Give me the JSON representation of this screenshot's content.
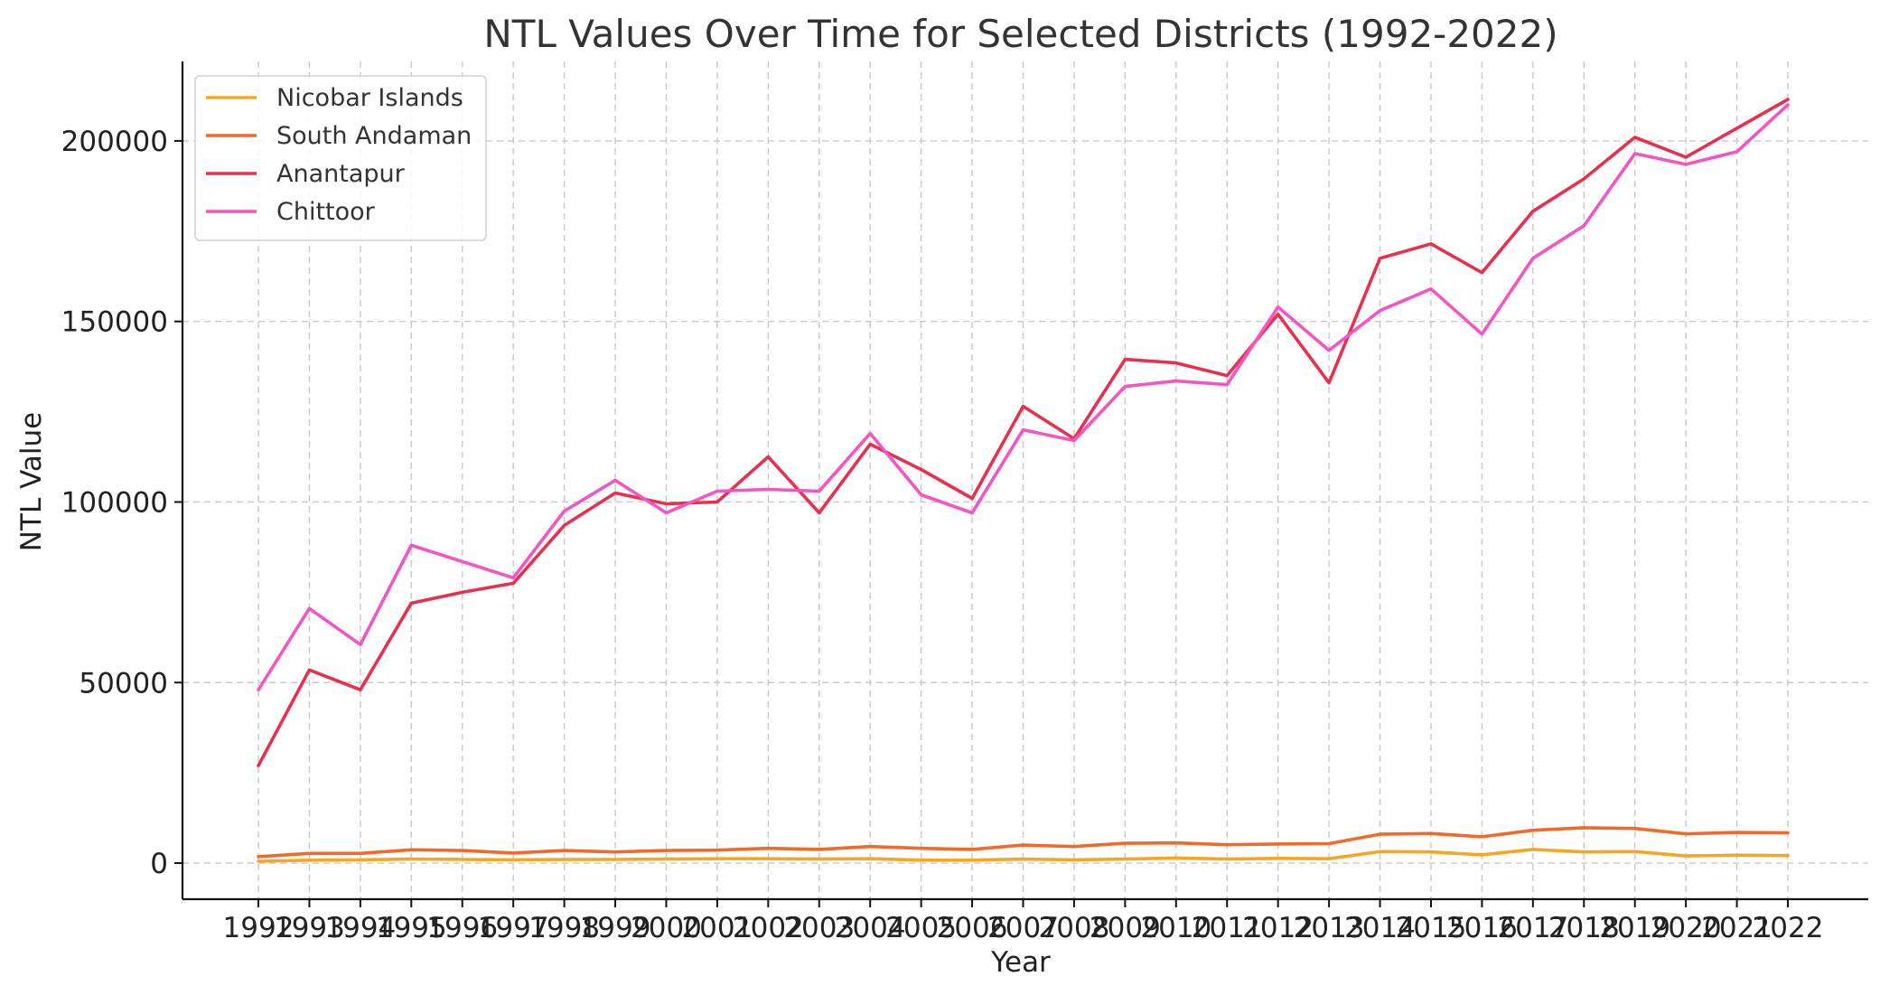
{
  "chart_data": {
    "type": "line",
    "title": "NTL Values Over Time for Selected Districts (1992-2022)",
    "xlabel": "Year",
    "ylabel": "NTL Value",
    "x": [
      "1992",
      "1993",
      "1994",
      "1995",
      "1996",
      "1997",
      "1998",
      "1999",
      "2000",
      "2001",
      "2002",
      "2003",
      "2004",
      "2005",
      "2006",
      "2007",
      "2008",
      "2009",
      "2010",
      "2011",
      "2012",
      "2013",
      "2014",
      "2015",
      "2016",
      "2017",
      "2018",
      "2019",
      "2020",
      "2021",
      "2022"
    ],
    "ylim": [
      -10000,
      222000
    ],
    "yticks": [
      0,
      50000,
      100000,
      150000,
      200000
    ],
    "grid": true,
    "legend_position": "top-left",
    "series": [
      {
        "name": "Nicobar Islands",
        "color": "#f5a623",
        "values": [
          500,
          800,
          900,
          1100,
          1000,
          900,
          1000,
          1000,
          1100,
          1200,
          1200,
          1100,
          1200,
          800,
          800,
          1100,
          900,
          1100,
          1400,
          1100,
          1300,
          1200,
          3200,
          3100,
          2300,
          3800,
          3100,
          3200,
          2000,
          2200,
          2100
        ]
      },
      {
        "name": "South Andaman",
        "color": "#f06a2a",
        "values": [
          1800,
          2700,
          2700,
          3700,
          3500,
          2800,
          3500,
          3100,
          3500,
          3600,
          4100,
          3800,
          4600,
          4100,
          3800,
          5000,
          4600,
          5500,
          5600,
          5100,
          5300,
          5400,
          8000,
          8200,
          7300,
          9100,
          9800,
          9600,
          8100,
          8500,
          8400
        ]
      },
      {
        "name": "Anantapur",
        "color": "#e8304e",
        "values": [
          27000,
          53500,
          48000,
          72000,
          75000,
          77500,
          93500,
          102500,
          99500,
          100000,
          112500,
          97000,
          116000,
          109000,
          101000,
          126500,
          117500,
          139500,
          138500,
          135000,
          152000,
          133000,
          167500,
          171500,
          163500,
          180500,
          189500,
          201000,
          195500,
          203500,
          211500
        ]
      },
      {
        "name": "Chittoor",
        "color": "#f355c2",
        "values": [
          48000,
          70500,
          60500,
          88000,
          83500,
          79000,
          97500,
          106000,
          97000,
          103000,
          103500,
          103000,
          119000,
          102000,
          97000,
          120000,
          117000,
          132000,
          133500,
          132500,
          154000,
          142000,
          153000,
          159000,
          146500,
          167500,
          176500,
          196500,
          193500,
          197000,
          210000
        ]
      }
    ]
  }
}
